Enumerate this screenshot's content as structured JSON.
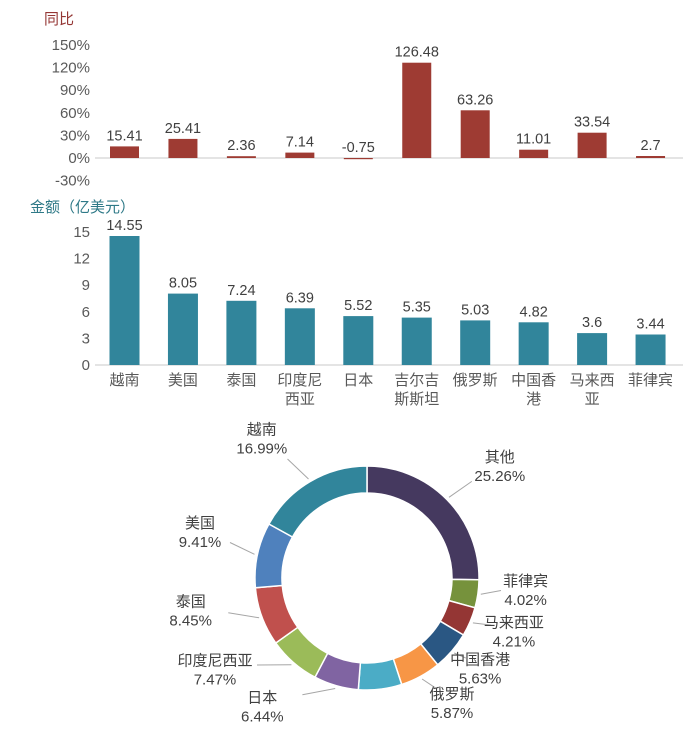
{
  "figure": {
    "background": "#ffffff",
    "axis_line_color": "#c9c9c9",
    "tick_label_color": "#595959",
    "value_label_color": "#404040"
  },
  "chart_data": [
    {
      "id": "yoy",
      "type": "bar",
      "title": "同比",
      "title_color": "#943634",
      "bar_color": "#9e3b33",
      "categories": [
        "越南",
        "美国",
        "泰国",
        "印度尼西亚",
        "日本",
        "吉尔吉斯斯坦",
        "俄罗斯",
        "中国香港",
        "马来西亚",
        "菲律宾"
      ],
      "values": [
        15.41,
        25.41,
        2.36,
        7.14,
        -0.75,
        126.48,
        63.26,
        11.01,
        33.54,
        2.7
      ],
      "data_labels": [
        "15.41",
        "25.41",
        "2.36",
        "7.14",
        "-0.75",
        "126.48",
        "63.26",
        "11.01",
        "33.54",
        "2.7"
      ],
      "ylim": [
        -30,
        150
      ],
      "y_step": 30,
      "y_tick_labels": [
        "150%",
        "120%",
        "90%",
        "60%",
        "30%",
        "0%",
        "-30%"
      ],
      "x_labels_visible": false,
      "grid": false
    },
    {
      "id": "amount",
      "type": "bar",
      "title": "金额（亿美元）",
      "title_color": "#2e7987",
      "bar_color": "#31859b",
      "categories": [
        "越南",
        "美国",
        "泰国",
        "印度尼西亚",
        "日本",
        "吉尔吉斯斯坦",
        "俄罗斯",
        "中国香港",
        "马来西亚",
        "菲律宾"
      ],
      "values": [
        14.55,
        8.05,
        7.24,
        6.39,
        5.52,
        5.35,
        5.03,
        4.82,
        3.6,
        3.44
      ],
      "data_labels": [
        "14.55",
        "8.05",
        "7.24",
        "6.39",
        "5.52",
        "5.35",
        "5.03",
        "4.82",
        "3.6",
        "3.44"
      ],
      "ylim": [
        0,
        15
      ],
      "y_step": 3,
      "y_tick_labels": [
        "15",
        "12",
        "9",
        "6",
        "3",
        "0"
      ],
      "x_labels_visible": true,
      "grid": false
    },
    {
      "id": "share",
      "type": "donut",
      "start": "top",
      "direction": "clockwise",
      "segments": [
        {
          "label": "其他",
          "pct": 25.26,
          "pct_label": "25.26%",
          "color": "#45395f"
        },
        {
          "label": "菲律宾",
          "pct": 4.02,
          "pct_label": "4.02%",
          "color": "#76923c"
        },
        {
          "label": "马来西亚",
          "pct": 4.21,
          "pct_label": "4.21%",
          "color": "#943634"
        },
        {
          "label": "中国香港",
          "pct": 5.63,
          "pct_label": "5.63%",
          "color": "#2a5783"
        },
        {
          "label": "俄罗斯",
          "pct": 5.87,
          "pct_label": "5.87%",
          "color": "#f79646"
        },
        {
          "label": "",
          "pct": 6.25,
          "pct_label": "",
          "color": "#4bacc6"
        },
        {
          "label": "日本",
          "pct": 6.44,
          "pct_label": "6.44%",
          "color": "#8064a2"
        },
        {
          "label": "印度尼西亚",
          "pct": 7.47,
          "pct_label": "7.47%",
          "color": "#9bbb59"
        },
        {
          "label": "泰国",
          "pct": 8.45,
          "pct_label": "8.45%",
          "color": "#c0504d"
        },
        {
          "label": "美国",
          "pct": 9.41,
          "pct_label": "9.41%",
          "color": "#4f81bd"
        },
        {
          "label": "越南",
          "pct": 16.99,
          "pct_label": "16.99%",
          "color": "#31859b"
        }
      ]
    }
  ]
}
